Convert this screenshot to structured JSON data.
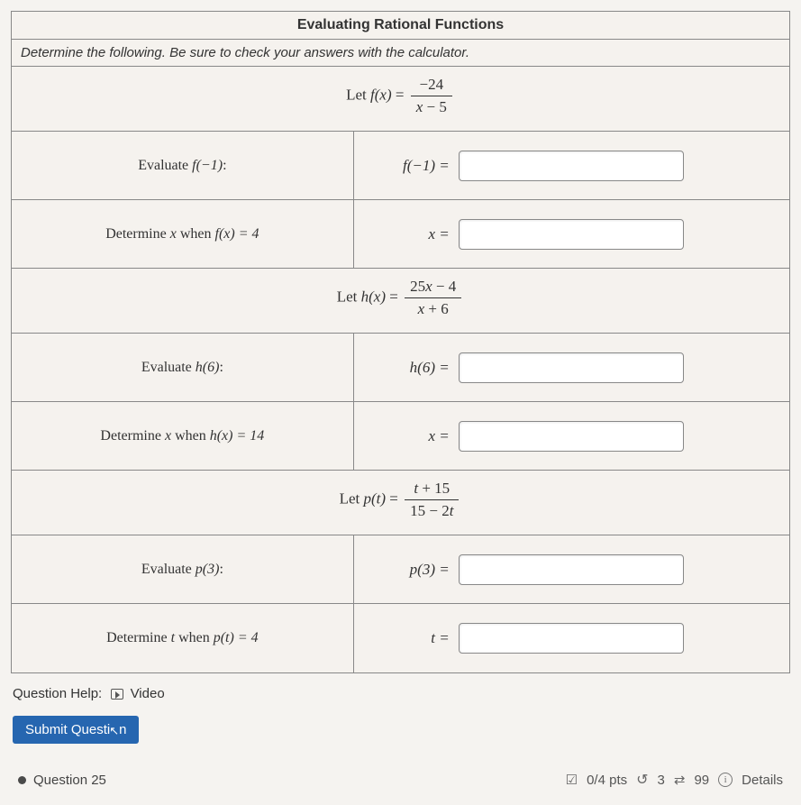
{
  "card": {
    "title": "Evaluating Rational Functions",
    "instructions": "Determine the following. Be sure to check your answers with the calculator.",
    "sections": [
      {
        "def_prefix": "Let ",
        "def_fn": "f(x)",
        "def_eq": " = ",
        "def_num": "−24",
        "def_den_lhs": "x",
        "def_den_rhs": " − 5",
        "rows": [
          {
            "prompt_pre": "Evaluate ",
            "prompt_fn": "f(−1)",
            "prompt_post": ":",
            "lhs": "f(−1) ="
          },
          {
            "prompt_pre": "Determine ",
            "prompt_var": "x",
            "prompt_mid": " when ",
            "prompt_fn": "f(x) = 4",
            "lhs": "x ="
          }
        ]
      },
      {
        "def_prefix": "Let ",
        "def_fn": "h(x)",
        "def_eq": " = ",
        "def_num_lhs": "25",
        "def_num_var": "x",
        "def_num_rhs": " − 4",
        "def_den_lhs": "x",
        "def_den_rhs": " + 6",
        "rows": [
          {
            "prompt_pre": "Evaluate ",
            "prompt_fn": "h(6)",
            "prompt_post": ":",
            "lhs": "h(6) ="
          },
          {
            "prompt_pre": "Determine ",
            "prompt_var": "x",
            "prompt_mid": " when ",
            "prompt_fn": "h(x) = 14",
            "lhs": "x ="
          }
        ]
      },
      {
        "def_prefix": "Let ",
        "def_fn": "p(t)",
        "def_eq": " = ",
        "def_num_var": "t",
        "def_num_rhs": " + 15",
        "def_den_lhs": "15 − 2",
        "def_den_var": "t",
        "rows": [
          {
            "prompt_pre": "Evaluate ",
            "prompt_fn": "p(3)",
            "prompt_post": ":",
            "lhs": "p(3) ="
          },
          {
            "prompt_pre": "Determine ",
            "prompt_var": "t",
            "prompt_mid": " when ",
            "prompt_fn": "p(t) = 4",
            "lhs": "t ="
          }
        ]
      }
    ]
  },
  "help": {
    "label": "Question Help:",
    "video": "Video"
  },
  "submit": {
    "label": "Submit Questi",
    "tail": "n"
  },
  "footer": {
    "question_label": "Question 25",
    "score": "0/4 pts",
    "attempts_left": "3",
    "attempts_total": "99",
    "details": "Details"
  },
  "colors": {
    "border": "#888888",
    "bg": "#f5f2ee",
    "submit_bg": "#2666b0",
    "submit_fg": "#ffffff",
    "text": "#333333"
  }
}
